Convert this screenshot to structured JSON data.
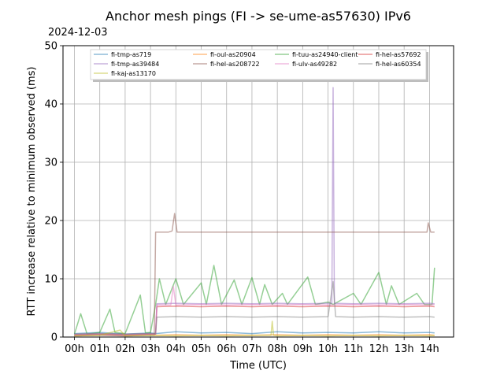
{
  "chart_data": {
    "type": "line",
    "title": "Anchor mesh pings (FI -> se-ume-as57630) IPv6",
    "date_label": "2024-12-03",
    "xlabel": "Time (UTC)",
    "ylabel": "RTT increase relative to minimum observed (ms)",
    "x_unit": "hours UTC",
    "xlim": [
      -0.45,
      14.95
    ],
    "ylim": [
      0,
      50
    ],
    "x_ticks": [
      {
        "v": 0,
        "label": "00h"
      },
      {
        "v": 1,
        "label": "01h"
      },
      {
        "v": 2,
        "label": "02h"
      },
      {
        "v": 3,
        "label": "03h"
      },
      {
        "v": 4,
        "label": "04h"
      },
      {
        "v": 5,
        "label": "05h"
      },
      {
        "v": 6,
        "label": "06h"
      },
      {
        "v": 7,
        "label": "07h"
      },
      {
        "v": 8,
        "label": "08h"
      },
      {
        "v": 9,
        "label": "09h"
      },
      {
        "v": 10,
        "label": "10h"
      },
      {
        "v": 11,
        "label": "11h"
      },
      {
        "v": 12,
        "label": "12h"
      },
      {
        "v": 13,
        "label": "13h"
      },
      {
        "v": 14,
        "label": "14h"
      }
    ],
    "y_ticks": [
      {
        "v": 0,
        "label": "0"
      },
      {
        "v": 10,
        "label": "10"
      },
      {
        "v": 20,
        "label": "20"
      },
      {
        "v": 30,
        "label": "30"
      },
      {
        "v": 40,
        "label": "40"
      },
      {
        "v": 50,
        "label": "50"
      }
    ],
    "grid": true,
    "legend_position": "top-center",
    "legend_columns": 4,
    "series": [
      {
        "name": "fi-tmp-as719",
        "color": "#1f77b4",
        "points": [
          [
            0,
            0.6
          ],
          [
            1,
            0.8
          ],
          [
            2,
            0.5
          ],
          [
            3,
            0.7
          ],
          [
            3.2,
            0.6
          ],
          [
            4,
            0.9
          ],
          [
            5,
            0.7
          ],
          [
            6,
            0.8
          ],
          [
            7,
            0.6
          ],
          [
            8,
            0.9
          ],
          [
            9,
            0.7
          ],
          [
            10,
            0.8
          ],
          [
            11,
            0.7
          ],
          [
            12,
            0.9
          ],
          [
            13,
            0.7
          ],
          [
            14,
            0.8
          ],
          [
            14.2,
            0.7
          ]
        ]
      },
      {
        "name": "fi-oul-as20904",
        "color": "#ff7f0e",
        "points": [
          [
            0,
            0.3
          ],
          [
            1,
            0.4
          ],
          [
            2,
            0.3
          ],
          [
            3,
            0.4
          ],
          [
            3.2,
            0.3
          ],
          [
            4,
            0.4
          ],
          [
            5,
            0.3
          ],
          [
            6,
            0.4
          ],
          [
            7,
            0.3
          ],
          [
            8,
            0.4
          ],
          [
            9,
            0.3
          ],
          [
            10,
            0.4
          ],
          [
            11,
            0.3
          ],
          [
            12,
            0.4
          ],
          [
            13,
            0.3
          ],
          [
            14,
            0.4
          ],
          [
            14.2,
            0.3
          ]
        ]
      },
      {
        "name": "fi-tuu-as24940-client",
        "color": "#2ca02c",
        "points": [
          [
            0,
            0.5
          ],
          [
            0.25,
            4.0
          ],
          [
            0.5,
            0.5
          ],
          [
            1,
            0.8
          ],
          [
            1.4,
            4.8
          ],
          [
            1.6,
            0.8
          ],
          [
            2,
            0.6
          ],
          [
            2.6,
            7.2
          ],
          [
            2.8,
            0.7
          ],
          [
            3,
            0.8
          ],
          [
            3.2,
            5.6
          ],
          [
            3.35,
            10.0
          ],
          [
            3.6,
            5.6
          ],
          [
            4,
            10.0
          ],
          [
            4.3,
            5.6
          ],
          [
            5,
            9.3
          ],
          [
            5.2,
            5.6
          ],
          [
            5.5,
            12.3
          ],
          [
            5.8,
            5.6
          ],
          [
            6.3,
            9.8
          ],
          [
            6.6,
            5.6
          ],
          [
            7,
            10.2
          ],
          [
            7.3,
            5.6
          ],
          [
            7.5,
            9.0
          ],
          [
            7.8,
            5.6
          ],
          [
            8.2,
            7.5
          ],
          [
            8.4,
            5.6
          ],
          [
            9.2,
            10.3
          ],
          [
            9.5,
            5.6
          ],
          [
            10,
            6.0
          ],
          [
            10.2,
            5.6
          ],
          [
            11,
            7.5
          ],
          [
            11.3,
            5.6
          ],
          [
            12,
            11.1
          ],
          [
            12.3,
            5.6
          ],
          [
            12.5,
            8.8
          ],
          [
            12.8,
            5.6
          ],
          [
            13.5,
            7.5
          ],
          [
            13.8,
            5.6
          ],
          [
            14.1,
            5.6
          ],
          [
            14.2,
            11.9
          ]
        ]
      },
      {
        "name": "fi-hel-as57692",
        "color": "#d62728",
        "points": [
          [
            0,
            0.4
          ],
          [
            1,
            0.5
          ],
          [
            2,
            0.4
          ],
          [
            3,
            0.5
          ],
          [
            3.2,
            0.5
          ],
          [
            3.25,
            5.2
          ],
          [
            4,
            5.3
          ],
          [
            5,
            5.2
          ],
          [
            6,
            5.3
          ],
          [
            7,
            5.2
          ],
          [
            8,
            5.3
          ],
          [
            9,
            5.2
          ],
          [
            10,
            5.3
          ],
          [
            11,
            5.2
          ],
          [
            12,
            5.3
          ],
          [
            13,
            5.2
          ],
          [
            14,
            5.3
          ],
          [
            14.2,
            5.2
          ]
        ]
      },
      {
        "name": "fi-tmp-as39484",
        "color": "#9467bd",
        "points": [
          [
            0,
            0.5
          ],
          [
            1,
            0.6
          ],
          [
            2,
            0.5
          ],
          [
            3,
            0.6
          ],
          [
            3.2,
            0.6
          ],
          [
            3.25,
            5.7
          ],
          [
            4,
            5.8
          ],
          [
            5,
            5.7
          ],
          [
            6,
            5.8
          ],
          [
            7,
            5.7
          ],
          [
            8,
            5.8
          ],
          [
            9,
            5.7
          ],
          [
            10,
            5.8
          ],
          [
            10.15,
            5.8
          ],
          [
            10.2,
            42.8
          ],
          [
            10.25,
            5.8
          ],
          [
            11,
            5.7
          ],
          [
            12,
            5.8
          ],
          [
            13,
            5.7
          ],
          [
            14,
            5.8
          ],
          [
            14.2,
            5.7
          ]
        ]
      },
      {
        "name": "fi-hel-as208722",
        "color": "#8c564b",
        "points": [
          [
            0,
            0.2
          ],
          [
            1,
            0.3
          ],
          [
            2,
            0.2
          ],
          [
            3,
            0.3
          ],
          [
            3.15,
            0.3
          ],
          [
            3.2,
            18.0
          ],
          [
            3.7,
            18.0
          ],
          [
            3.85,
            18.2
          ],
          [
            3.95,
            21.2
          ],
          [
            4.05,
            18.0
          ],
          [
            5,
            18.0
          ],
          [
            6,
            18.0
          ],
          [
            7,
            18.0
          ],
          [
            8,
            18.0
          ],
          [
            9,
            18.0
          ],
          [
            10,
            18.0
          ],
          [
            11,
            18.0
          ],
          [
            12,
            18.0
          ],
          [
            13,
            18.0
          ],
          [
            13.9,
            18.0
          ],
          [
            13.95,
            19.6
          ],
          [
            14.05,
            18.0
          ],
          [
            14.2,
            18.0
          ]
        ]
      },
      {
        "name": "fi-ulv-as49282",
        "color": "#e377c2",
        "points": [
          [
            0,
            0.4
          ],
          [
            1,
            0.5
          ],
          [
            2,
            0.4
          ],
          [
            3,
            0.5
          ],
          [
            3.2,
            0.5
          ],
          [
            3.25,
            5.5
          ],
          [
            3.8,
            5.5
          ],
          [
            3.9,
            8.7
          ],
          [
            4.0,
            5.5
          ],
          [
            5,
            5.6
          ],
          [
            6,
            5.5
          ],
          [
            7,
            5.6
          ],
          [
            8,
            5.5
          ],
          [
            9,
            5.6
          ],
          [
            10,
            5.5
          ],
          [
            11,
            5.6
          ],
          [
            12,
            5.5
          ],
          [
            13,
            5.6
          ],
          [
            14,
            5.5
          ],
          [
            14.2,
            5.6
          ]
        ]
      },
      {
        "name": "fi-hel-as60354",
        "color": "#7f7f7f",
        "points": [
          [
            0,
            0.5
          ],
          [
            1,
            0.6
          ],
          [
            2,
            0.5
          ],
          [
            3,
            0.6
          ],
          [
            3.2,
            0.6
          ],
          [
            3.25,
            3.4
          ],
          [
            4,
            3.5
          ],
          [
            5,
            3.4
          ],
          [
            6,
            3.5
          ],
          [
            7,
            3.4
          ],
          [
            8,
            3.5
          ],
          [
            9,
            3.4
          ],
          [
            10,
            3.5
          ],
          [
            10.2,
            9.5
          ],
          [
            10.3,
            3.5
          ],
          [
            11,
            3.4
          ],
          [
            12,
            3.5
          ],
          [
            13,
            3.4
          ],
          [
            14,
            3.5
          ],
          [
            14.2,
            3.4
          ]
        ]
      },
      {
        "name": "fi-kaj-as13170",
        "color": "#bcbd22",
        "points": [
          [
            0,
            0.2
          ],
          [
            1,
            0.3
          ],
          [
            1.8,
            1.2
          ],
          [
            2,
            0.2
          ],
          [
            3,
            0.3
          ],
          [
            4,
            0.2
          ],
          [
            5,
            0.3
          ],
          [
            6,
            0.2
          ],
          [
            7,
            0.3
          ],
          [
            7.75,
            0.3
          ],
          [
            7.8,
            2.7
          ],
          [
            7.85,
            0.3
          ],
          [
            8,
            0.2
          ],
          [
            9,
            0.3
          ],
          [
            10,
            0.2
          ],
          [
            11,
            0.3
          ],
          [
            12,
            0.2
          ],
          [
            13,
            0.3
          ],
          [
            14,
            0.2
          ],
          [
            14.2,
            0.3
          ]
        ]
      }
    ]
  }
}
